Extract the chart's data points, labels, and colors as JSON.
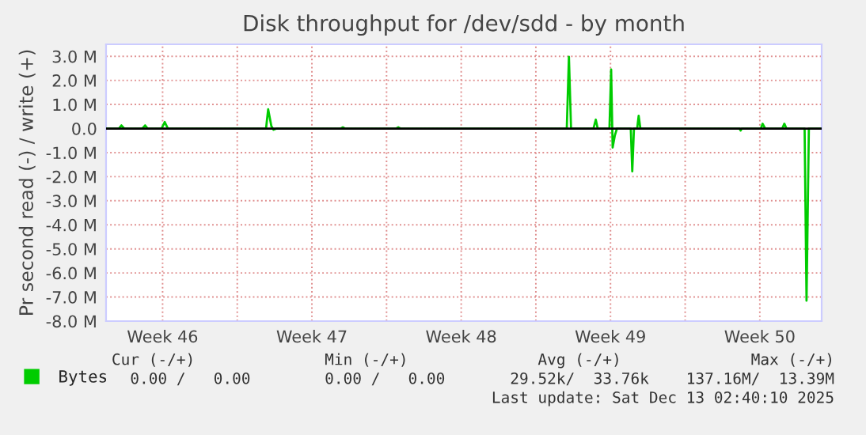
{
  "chart_data": {
    "type": "line",
    "title": "Disk throughput for /dev/sdd - by month",
    "ylabel": "Pr second read (-) / write (+)",
    "xlim": [
      "2025-11-10T20:24",
      "2025-12-14T09:36"
    ],
    "xticks": [
      {
        "value": "2025-11-13T12:00",
        "label": "Week 46"
      },
      {
        "value": "2025-11-17",
        "label": null
      },
      {
        "value": "2025-11-20T12:00",
        "label": "Week 47"
      },
      {
        "value": "2025-11-24",
        "label": null
      },
      {
        "value": "2025-11-27T12:00",
        "label": "Week 48"
      },
      {
        "value": "2025-12-01",
        "label": null
      },
      {
        "value": "2025-12-04T12:00",
        "label": "Week 49"
      },
      {
        "value": "2025-12-08",
        "label": null
      },
      {
        "value": "2025-12-11T12:00",
        "label": "Week 50"
      }
    ],
    "ylim": [
      -8.0,
      3.5
    ],
    "yticks": [
      {
        "value": 3,
        "label": "3.0 M"
      },
      {
        "value": 2,
        "label": "2.0 M"
      },
      {
        "value": 1,
        "label": "1.0 M"
      },
      {
        "value": 0,
        "label": "0.0"
      },
      {
        "value": -1,
        "label": "-1.0 M"
      },
      {
        "value": -2,
        "label": "-2.0 M"
      },
      {
        "value": -3,
        "label": "-3.0 M"
      },
      {
        "value": -4,
        "label": "-4.0 M"
      },
      {
        "value": -5,
        "label": "-5.0 M"
      },
      {
        "value": -6,
        "label": "-6.0 M"
      },
      {
        "value": -7,
        "label": "-7.0 M"
      },
      {
        "value": -8,
        "label": "-8.0 M"
      }
    ],
    "grid": true,
    "legend": "bottom left",
    "ref_lines": [
      {
        "axis": "y",
        "value": 0,
        "color": "#000000"
      }
    ],
    "series": [
      {
        "name": "Bytes",
        "color": "#00cc00",
        "x": [
          "2025-11-10T20:24",
          "2025-11-11T10:48",
          "2025-11-11T13:41",
          "2025-11-11T16:48",
          "2025-11-12T13:12",
          "2025-11-12T16:19",
          "2025-11-12T19:12",
          "2025-11-13T10:48",
          "2025-11-13T14:24",
          "2025-11-13T18:00",
          "2025-11-18T08:24",
          "2025-11-18T10:48",
          "2025-11-18T14:24",
          "2025-11-18T16:48",
          "2025-11-18T20:24",
          "2025-11-21T20:24",
          "2025-11-21T22:48",
          "2025-11-22T01:12",
          "2025-11-24T10:48",
          "2025-11-24T13:12",
          "2025-11-24T15:36",
          "2025-12-02T10:48",
          "2025-12-02T13:12",
          "2025-12-02T15:36",
          "2025-12-03T16:48",
          "2025-12-03T19:26",
          "2025-12-03T21:36",
          "2025-12-04T10:48",
          "2025-12-04T12:43",
          "2025-12-04T14:24",
          "2025-12-04T16:48",
          "2025-12-04T19:12",
          "2025-12-05T10:48",
          "2025-12-05T12:29",
          "2025-12-05T14:24",
          "2025-12-05T18:00",
          "2025-12-05T19:41",
          "2025-12-05T21:36",
          "2025-12-10T13:12",
          "2025-12-10T14:24",
          "2025-12-10T15:36",
          "2025-12-11T13:12",
          "2025-12-11T15:07",
          "2025-12-11T18:00",
          "2025-12-12T13:12",
          "2025-12-12T15:36",
          "2025-12-12T18:00",
          "2025-12-13T14:24",
          "2025-12-13T16:34",
          "2025-12-13T19:12",
          "2025-12-14T08:24"
        ],
        "values": [
          0,
          0,
          0.13,
          0,
          0,
          0.13,
          0,
          0,
          0.27,
          0,
          0,
          0.8,
          0.1,
          -0.05,
          0,
          0,
          0.05,
          0,
          0,
          0.05,
          0,
          0,
          2.98,
          0,
          0,
          0.37,
          0,
          0,
          2.45,
          -0.79,
          -0.3,
          0,
          0,
          -1.78,
          0,
          0,
          0.53,
          0,
          0,
          -0.08,
          0,
          0,
          0.2,
          0,
          0,
          0.2,
          0,
          0,
          -7.15,
          0,
          0
        ]
      }
    ],
    "annotations": [
      "Cur (-/+)              Min (-/+)              Avg (-/+)              Max (-/+)",
      "0.00 /   0.00        0.00 /   0.00       29.52k/  33.76k    137.16M/  13.39M",
      "Last update: Sat Dec 13 02:40:10 2025"
    ]
  }
}
